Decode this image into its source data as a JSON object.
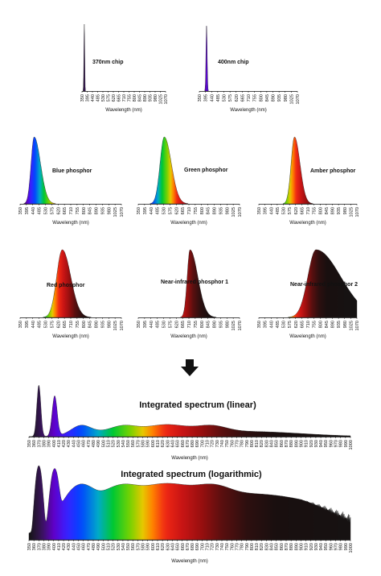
{
  "chart_data": [
    {
      "id": "chip370",
      "type": "area",
      "title": "370nm chip",
      "xlabel": "Wavelength (nm)",
      "x_ticks": [
        350,
        395,
        440,
        485,
        530,
        575,
        620,
        665,
        710,
        755,
        800,
        845,
        890,
        935,
        980,
        1025,
        1070
      ],
      "xlim": [
        350,
        1070
      ],
      "peak": 370,
      "fwhm": 8,
      "color_mode": "spectral",
      "grid": false
    },
    {
      "id": "chip400",
      "type": "area",
      "title": "400nm chip",
      "xlabel": "Wavelength (nm)",
      "x_ticks": [
        350,
        395,
        440,
        485,
        530,
        575,
        620,
        665,
        710,
        755,
        800,
        845,
        890,
        935,
        980,
        1025,
        1070
      ],
      "xlim": [
        350,
        1070
      ],
      "peak": 403,
      "fwhm": 10,
      "color_mode": "spectral",
      "grid": false
    },
    {
      "id": "blue",
      "type": "area",
      "title": "Blue phosphor",
      "xlabel": "Wavelength (nm)",
      "x_ticks": [
        350,
        395,
        440,
        485,
        530,
        575,
        620,
        665,
        710,
        755,
        800,
        845,
        890,
        935,
        980,
        1025,
        1070
      ],
      "xlim": [
        350,
        1070
      ],
      "peak": 450,
      "sigma_left": 22,
      "sigma_right": 45,
      "color_mode": "spectral",
      "grid": false
    },
    {
      "id": "green",
      "type": "area",
      "title": "Green phosphor",
      "xlabel": "Wavelength (nm)",
      "x_ticks": [
        350,
        395,
        440,
        485,
        530,
        575,
        620,
        665,
        710,
        755,
        800,
        845,
        890,
        935,
        980,
        1025,
        1070
      ],
      "xlim": [
        350,
        1070
      ],
      "peak": 535,
      "sigma_left": 30,
      "sigma_right": 50,
      "color_mode": "spectral",
      "grid": false
    },
    {
      "id": "amber",
      "type": "area",
      "title": "Amber phosphor",
      "xlabel": "Wavelength (nm)",
      "x_ticks": [
        350,
        395,
        440,
        485,
        530,
        575,
        620,
        665,
        710,
        755,
        800,
        845,
        890,
        935,
        980,
        1025,
        1070
      ],
      "xlim": [
        350,
        1070
      ],
      "peak": 612,
      "sigma_left": 25,
      "sigma_right": 40,
      "color_mode": "spectral",
      "grid": false
    },
    {
      "id": "red",
      "type": "area",
      "title": "Red phosphor",
      "xlabel": "Wavelength (nm)",
      "x_ticks": [
        350,
        395,
        440,
        485,
        530,
        575,
        620,
        665,
        710,
        755,
        800,
        845,
        890,
        935,
        980,
        1025,
        1070
      ],
      "xlim": [
        350,
        1070
      ],
      "peak": 650,
      "sigma_left": 40,
      "sigma_right": 60,
      "color_mode": "spectral",
      "grid": false
    },
    {
      "id": "nir1",
      "type": "area",
      "title": "Near-infrared phosphor 1",
      "xlabel": "Wavelength (nm)",
      "x_ticks": [
        350,
        395,
        440,
        485,
        530,
        575,
        620,
        665,
        710,
        755,
        800,
        845,
        890,
        935,
        980,
        1025,
        1070
      ],
      "xlim": [
        350,
        1070
      ],
      "peak": 718,
      "sigma_left": 20,
      "sigma_right": 55,
      "color_mode": "spectral",
      "grid": false
    },
    {
      "id": "nir2",
      "type": "area",
      "title": "Near-infrared phosphor 2",
      "xlabel": "Wavelength (nm)",
      "x_ticks": [
        350,
        395,
        440,
        485,
        530,
        575,
        620,
        665,
        710,
        755,
        800,
        845,
        890,
        935,
        980,
        1025,
        1070
      ],
      "xlim": [
        350,
        1070
      ],
      "peak": 770,
      "sigma_left": 60,
      "sigma_right": 180,
      "color_mode": "spectral",
      "grid": false
    },
    {
      "id": "linear",
      "type": "area",
      "title": "Integrated spectrum (linear)",
      "xlabel": "Wavelength (nm)",
      "x_ticks": [
        350,
        360,
        370,
        380,
        390,
        400,
        410,
        420,
        430,
        440,
        450,
        460,
        470,
        480,
        490,
        500,
        510,
        520,
        530,
        540,
        550,
        560,
        570,
        580,
        590,
        600,
        610,
        620,
        630,
        640,
        650,
        660,
        670,
        680,
        690,
        700,
        710,
        720,
        730,
        740,
        750,
        760,
        770,
        780,
        790,
        800,
        810,
        820,
        830,
        840,
        850,
        860,
        870,
        880,
        890,
        900,
        910,
        920,
        930,
        940,
        950,
        960,
        970,
        980,
        990,
        1000
      ],
      "xlim": [
        350,
        1000
      ],
      "scale": "linear",
      "color_mode": "spectral",
      "grid": false
    },
    {
      "id": "log",
      "type": "area",
      "title": "Integrated spectrum (logarithmic)",
      "xlabel": "Wavelength (nm)",
      "x_ticks": [
        350,
        360,
        370,
        380,
        390,
        400,
        410,
        420,
        430,
        440,
        450,
        460,
        470,
        480,
        490,
        500,
        510,
        520,
        530,
        540,
        550,
        560,
        570,
        580,
        590,
        600,
        610,
        620,
        630,
        640,
        650,
        660,
        670,
        680,
        690,
        700,
        710,
        720,
        730,
        740,
        750,
        760,
        770,
        780,
        790,
        800,
        810,
        820,
        830,
        840,
        850,
        860,
        870,
        880,
        890,
        900,
        910,
        920,
        930,
        940,
        950,
        960,
        970,
        980,
        990,
        1000
      ],
      "xlim": [
        350,
        1000
      ],
      "scale": "log",
      "color_mode": "spectral",
      "grid": false
    }
  ],
  "arrow_icon": "arrow-down-icon"
}
